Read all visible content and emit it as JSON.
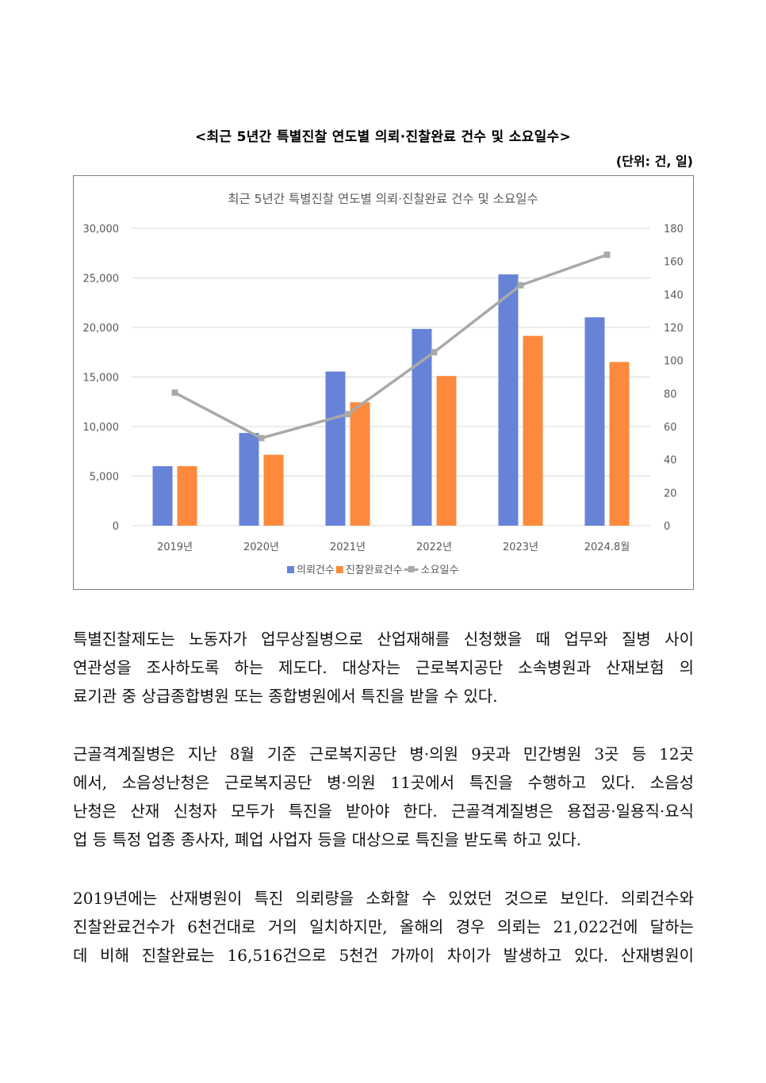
{
  "document": {
    "caption": "<최근 5년간 특별진찰 연도별 의뢰·진찰완료 건수 및 소요일수>",
    "unit": "(단위: 건, 일)",
    "paragraphs": [
      {
        "lines": [
          "특별진찰제도는 노동자가 업무상질병으로 산업재해를 신청했을 때 업무와 질병 사이",
          "연관성을 조사하도록 하는 제도다. 대상자는 근로복지공단 소속병원과 산재보험 의",
          "료기관 중 상급종합병원 또는 종합병원에서 특진을 받을 수 있다."
        ]
      },
      {
        "lines": [
          "근골격계질병은 지난 8월 기준 근로복지공단 병·의원 9곳과 민간병원 3곳 등 12곳",
          "에서, 소음성난청은 근로복지공단 병·의원 11곳에서 특진을 수행하고 있다. 소음성",
          "난청은 산재 신청자 모두가 특진을 받아야 한다. 근골격계질병은 용접공·일용직·요식",
          "업 등 특정 업종 종사자, 폐업 사업자 등을 대상으로 특진을 받도록 하고 있다."
        ]
      },
      {
        "lines": [
          "2019년에는 산재병원이 특진 의뢰량을 소화할 수 있었던 것으로 보인다. 의뢰건수와",
          "진찰완료건수가 6천건대로 거의 일치하지만, 올해의 경우 의뢰는 21,022건에 달하는",
          "데 비해 진찰완료는 16,516건으로 5천건 가까이 차이가 발생하고 있다. 산재병원이"
        ]
      }
    ]
  },
  "colors": {
    "series1": "#6683d8",
    "series2": "#fd8a3c",
    "series3": "#a9a9a9",
    "grid": "#d9d9d9",
    "text": "#595959"
  },
  "chart_data": {
    "type": "bar",
    "title": "최근 5년간 특별진찰 연도별 의뢰·진찰완료 건수 및 소요일수",
    "categories": [
      "2019년",
      "2020년",
      "2021년",
      "2022년",
      "2023년",
      "2024.8월"
    ],
    "series": [
      {
        "name": "의뢰건수",
        "type": "bar",
        "axis": "left",
        "values": [
          6000,
          9350,
          15550,
          19850,
          25350,
          21022
        ]
      },
      {
        "name": "진찰완료건수",
        "type": "bar",
        "axis": "left",
        "values": [
          6000,
          7150,
          12450,
          15100,
          19150,
          16516
        ]
      },
      {
        "name": "소요일수",
        "type": "line",
        "axis": "right",
        "values": [
          80.5,
          53,
          67.5,
          105,
          145.5,
          164
        ]
      }
    ],
    "y_left": {
      "min": 0,
      "max": 30000,
      "ticks": [
        "0",
        "5,000",
        "10,000",
        "15,000",
        "20,000",
        "25,000",
        "30,000"
      ]
    },
    "y_right": {
      "min": 0,
      "max": 180,
      "ticks": [
        "0",
        "20",
        "40",
        "60",
        "80",
        "100",
        "120",
        "140",
        "160",
        "180"
      ]
    },
    "grid": true,
    "legend": "bottom"
  }
}
